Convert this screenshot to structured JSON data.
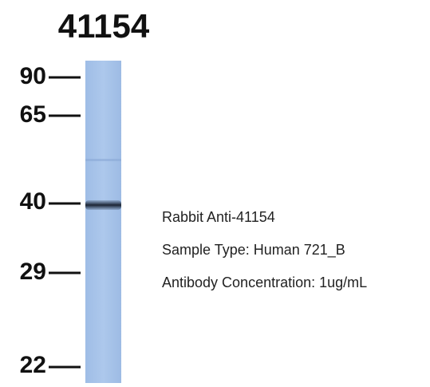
{
  "header": {
    "title": "41154"
  },
  "markers": [
    "90",
    "65",
    "40",
    "29",
    "22"
  ],
  "info": [
    "Rabbit Anti-41154",
    "Sample Type: Human 721_B",
    "Antibody Concentration: 1ug/mL"
  ]
}
